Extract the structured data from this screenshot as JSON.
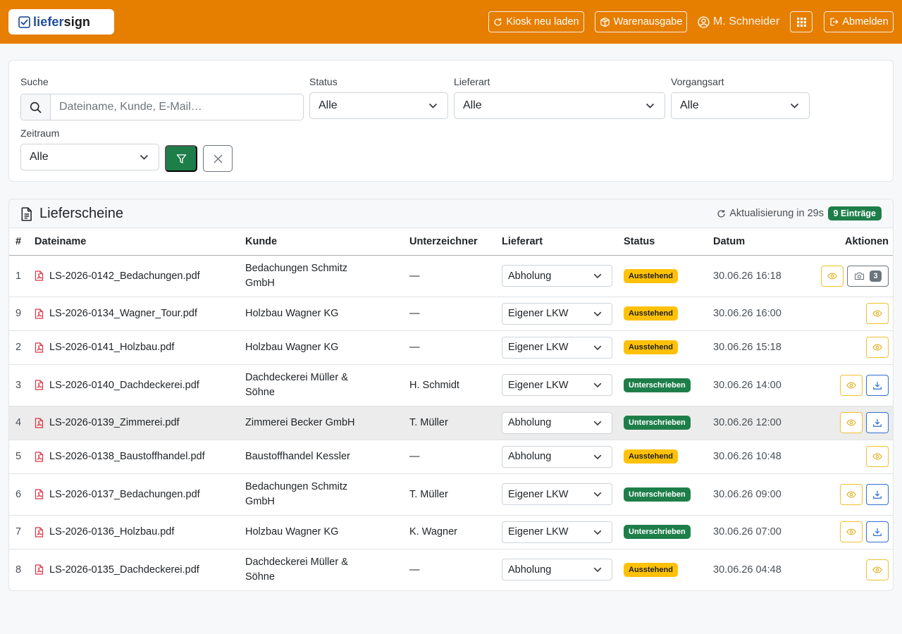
{
  "header": {
    "logo_part1": "liefer",
    "logo_part2": "sign",
    "kiosk_label": "Kiosk neu laden",
    "warenausgabe_label": "Warenausgabe",
    "user_name": "M. Schneider",
    "logout_label": "Abmelden",
    "colors": {
      "bar": "#e67e00"
    }
  },
  "filters": {
    "search_label": "Suche",
    "search_placeholder": "Dateiname, Kunde, E-Mail…",
    "search_value": "",
    "status_label": "Status",
    "status_value": "Alle",
    "lieferart_label": "Lieferart",
    "lieferart_value": "Alle",
    "vorgangsart_label": "Vorgangsart",
    "vorgangsart_value": "Alle",
    "zeitraum_label": "Zeitraum",
    "zeitraum_value": "Alle"
  },
  "table": {
    "title": "Lieferscheine",
    "refresh_text": "Aktualisierung in 29s",
    "count_badge": "9 Einträge",
    "headers": {
      "num": "#",
      "dateiname": "Dateiname",
      "kunde": "Kunde",
      "unterzeichner": "Unterzeichner",
      "lieferart": "Lieferart",
      "status": "Status",
      "datum": "Datum",
      "aktionen": "Aktionen"
    },
    "rows": [
      {
        "num": "1",
        "file": "LS-2026-0142_Bedachungen.pdf",
        "kunde": "Bedachungen Schmitz GmbH",
        "signer": "—",
        "lieferart": "Abholung",
        "status": "Ausstehend",
        "datum": "30.06.26 16:18",
        "photo_count": "3"
      },
      {
        "num": "9",
        "file": "LS-2026-0134_Wagner_Tour.pdf",
        "kunde": "Holzbau Wagner KG",
        "signer": "—",
        "lieferart": "Eigener LKW",
        "status": "Ausstehend",
        "datum": "30.06.26 16:00"
      },
      {
        "num": "2",
        "file": "LS-2026-0141_Holzbau.pdf",
        "kunde": "Holzbau Wagner KG",
        "signer": "—",
        "lieferart": "Eigener LKW",
        "status": "Ausstehend",
        "datum": "30.06.26 15:18"
      },
      {
        "num": "3",
        "file": "LS-2026-0140_Dachdeckerei.pdf",
        "kunde": "Dachdeckerei Müller & Söhne",
        "signer": "H. Schmidt",
        "lieferart": "Eigener LKW",
        "status": "Unterschrieben",
        "datum": "30.06.26 14:00"
      },
      {
        "num": "4",
        "file": "LS-2026-0139_Zimmerei.pdf",
        "kunde": "Zimmerei Becker GmbH",
        "signer": "T. Müller",
        "lieferart": "Abholung",
        "status": "Unterschrieben",
        "datum": "30.06.26 12:00"
      },
      {
        "num": "5",
        "file": "LS-2026-0138_Baustoffhandel.pdf",
        "kunde": "Baustoffhandel Kessler",
        "signer": "—",
        "lieferart": "Abholung",
        "status": "Ausstehend",
        "datum": "30.06.26 10:48"
      },
      {
        "num": "6",
        "file": "LS-2026-0137_Bedachungen.pdf",
        "kunde": "Bedachungen Schmitz GmbH",
        "signer": "T. Müller",
        "lieferart": "Eigener LKW",
        "status": "Unterschrieben",
        "datum": "30.06.26 09:00"
      },
      {
        "num": "7",
        "file": "LS-2026-0136_Holzbau.pdf",
        "kunde": "Holzbau Wagner KG",
        "signer": "K. Wagner",
        "lieferart": "Eigener LKW",
        "status": "Unterschrieben",
        "datum": "30.06.26 07:00"
      },
      {
        "num": "8",
        "file": "LS-2026-0135_Dachdeckerei.pdf",
        "kunde": "Dachdeckerei Müller & Söhne",
        "signer": "—",
        "lieferart": "Abholung",
        "status": "Ausstehend",
        "datum": "30.06.26 04:48"
      }
    ]
  },
  "icons": [
    "checkbox-logo-icon",
    "refresh-icon",
    "box-icon",
    "user-circle-icon",
    "grid-icon",
    "logout-icon",
    "search-icon",
    "chevron-down-icon",
    "filter-icon",
    "close-icon",
    "document-icon",
    "pdf-icon",
    "eye-icon",
    "download-icon",
    "camera-icon"
  ],
  "colors": {
    "accent_green": "#1e7e4a",
    "warning": "#ffc107",
    "primary_blue": "#2f6fd0",
    "pdf_red": "#dc3545"
  }
}
